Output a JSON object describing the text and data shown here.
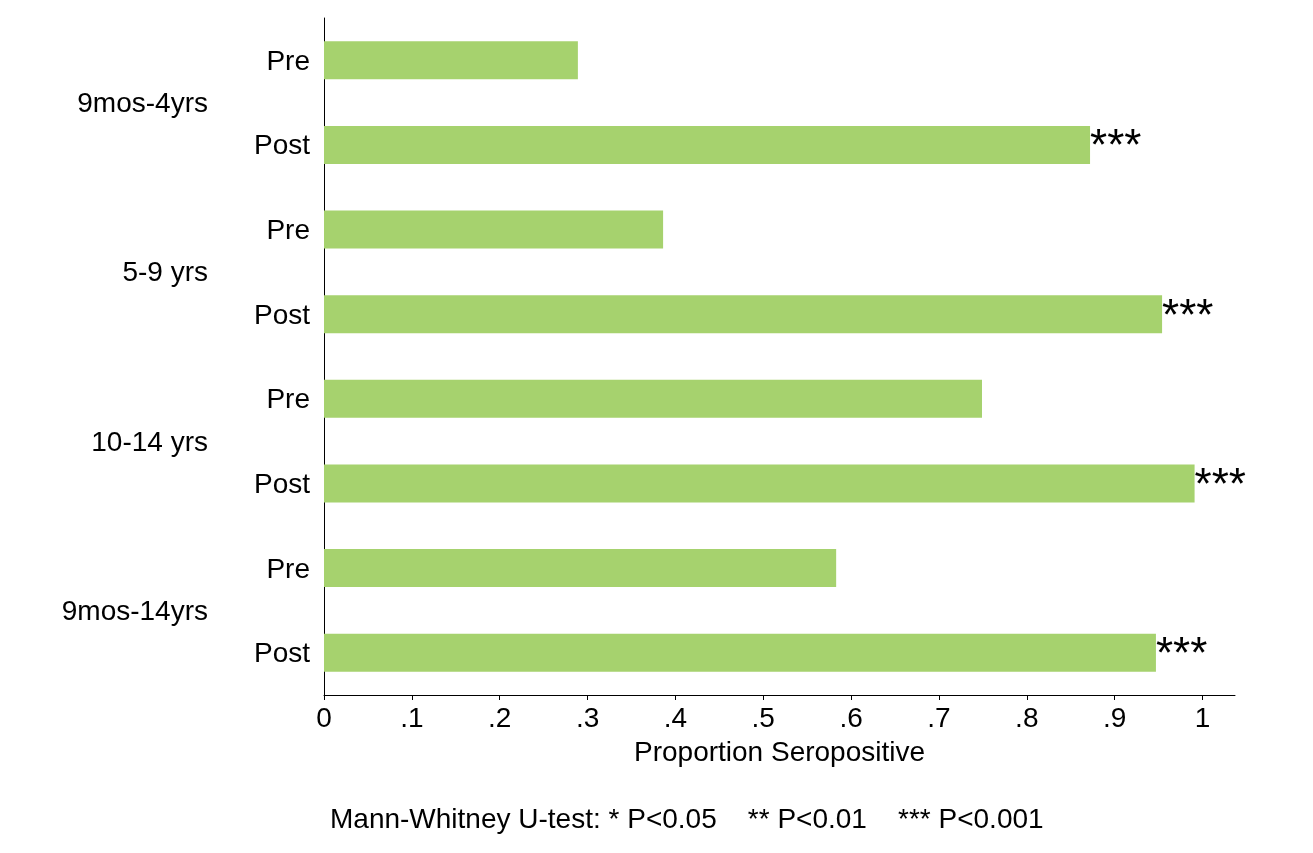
{
  "chart_data": {
    "type": "bar",
    "orientation": "horizontal",
    "categories": [
      "Pre",
      "Post",
      "Pre",
      "Post",
      "Pre",
      "Post",
      "Pre",
      "Post"
    ],
    "values": [
      0.289,
      0.872,
      0.386,
      0.954,
      0.749,
      0.991,
      0.583,
      0.947
    ],
    "value_labels": [
      null,
      "***",
      null,
      "***",
      null,
      "***",
      null,
      "***"
    ],
    "color": "#a6d26e",
    "xlabel": "Proportion Seropositive",
    "xlim": [
      0,
      1.037
    ],
    "xticks": [
      0,
      {
        "value": 0.1,
        "label": ".1"
      },
      {
        "value": 0.2,
        "label": ".2"
      },
      {
        "value": 0.3,
        "label": ".3"
      },
      {
        "value": 0.4,
        "label": ".4"
      },
      {
        "value": 0.5,
        "label": ".5"
      },
      {
        "value": 0.6,
        "label": ".6"
      },
      {
        "value": 0.7,
        "label": ".7"
      },
      {
        "value": 0.8,
        "label": ".8"
      },
      {
        "value": 0.9,
        "label": ".9"
      },
      1
    ],
    "annotations": [
      "9mos-4yrs",
      "5-9 yrs",
      "10-14 yrs",
      "9mos-14yrs",
      "Mann-Whitney U-test: * P<0.05    ** P<0.01    *** P<0.001"
    ],
    "grid": false
  }
}
